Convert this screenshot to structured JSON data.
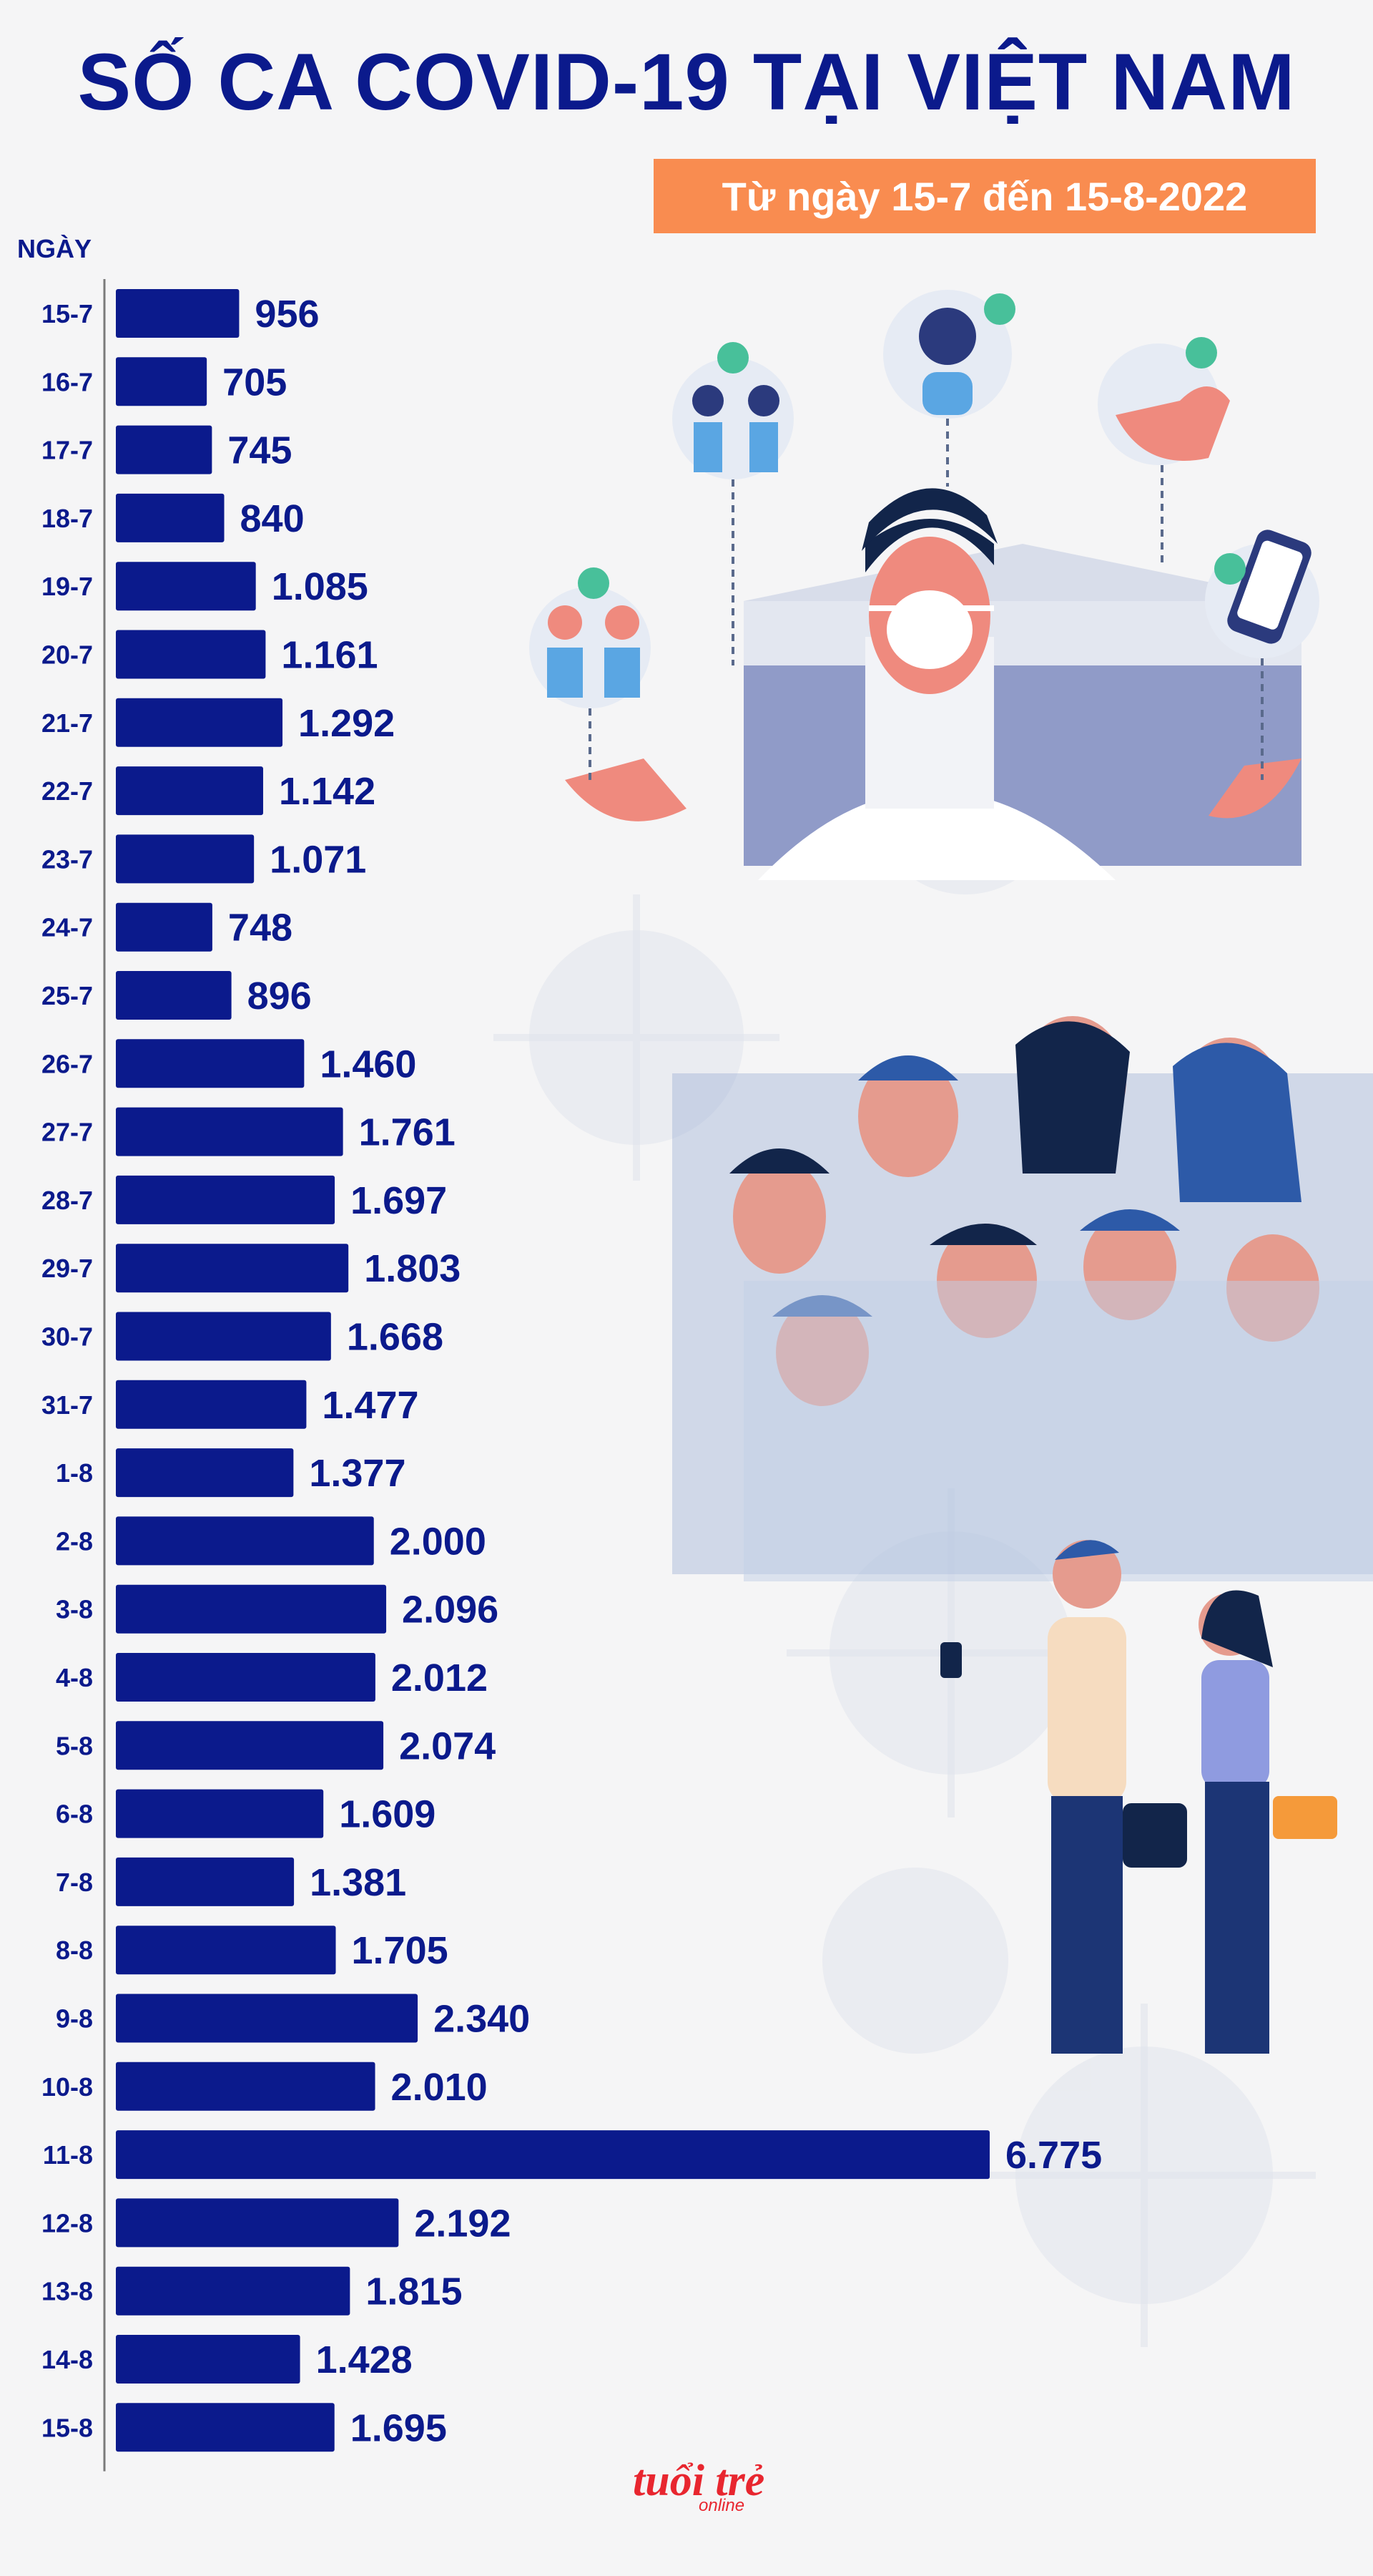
{
  "header": {
    "title": "SỐ CA COVID-19 TẠI VIỆT NAM",
    "subtitle": "Từ ngày 15-7 đến 15-8-2022"
  },
  "colors": {
    "bar": "#0b1a8c",
    "subtitle_bg": "#f98c50",
    "background": "#f5f5f6"
  },
  "logo": {
    "main": "tuổi trẻ",
    "sub": "online"
  },
  "chart_data": {
    "type": "bar",
    "orientation": "horizontal",
    "title": "SỐ CA COVID-19 TẠI VIỆT NAM",
    "subtitle": "Từ ngày 15-7 đến 15-8-2022",
    "ylabel": "NGÀY",
    "xlabel": "",
    "categories": [
      "15-7",
      "16-7",
      "17-7",
      "18-7",
      "19-7",
      "20-7",
      "21-7",
      "22-7",
      "23-7",
      "24-7",
      "25-7",
      "26-7",
      "27-7",
      "28-7",
      "29-7",
      "30-7",
      "31-7",
      "1-8",
      "2-8",
      "3-8",
      "4-8",
      "5-8",
      "6-8",
      "7-8",
      "8-8",
      "9-8",
      "10-8",
      "11-8",
      "12-8",
      "13-8",
      "14-8",
      "15-8"
    ],
    "values": [
      956,
      705,
      745,
      840,
      1085,
      1161,
      1292,
      1142,
      1071,
      748,
      896,
      1460,
      1761,
      1697,
      1803,
      1668,
      1477,
      1377,
      2000,
      2096,
      2012,
      2074,
      1609,
      1381,
      1705,
      2340,
      2010,
      6775,
      2192,
      1815,
      1428,
      1695
    ],
    "value_labels": [
      "956",
      "705",
      "745",
      "840",
      "1.085",
      "1.161",
      "1.292",
      "1.142",
      "1.071",
      "748",
      "896",
      "1.460",
      "1.761",
      "1.697",
      "1.803",
      "1.668",
      "1.477",
      "1.377",
      "2.000",
      "2.096",
      "2.012",
      "2.074",
      "1.609",
      "1.381",
      "1.705",
      "2.340",
      "2.010",
      "6.775",
      "2.192",
      "1.815",
      "1.428",
      "1.695"
    ],
    "xlim": [
      0,
      6775
    ],
    "grid": false,
    "legend": "none"
  }
}
